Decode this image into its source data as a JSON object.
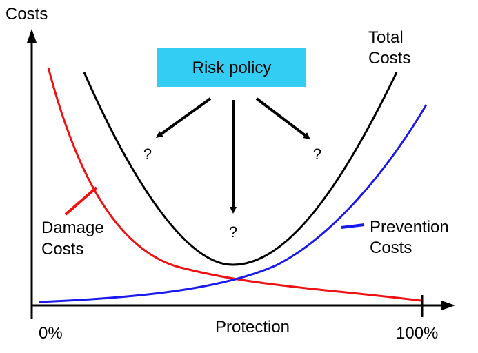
{
  "axes": {
    "y_label": "Costs",
    "x_label": "Protection",
    "x_min_label": "0%",
    "x_max_label": "100%"
  },
  "policy_box": {
    "label": "Risk policy",
    "color": "#33ccf2"
  },
  "question_marks": [
    "?",
    "?",
    "?"
  ],
  "curves": {
    "total": {
      "label_line1": "Total",
      "label_line2": "Costs",
      "color": "#000000"
    },
    "damage": {
      "label_line1": "Damage",
      "label_line2": "Costs",
      "color": "#ee1111"
    },
    "prevention": {
      "label_line1": "Prevention",
      "label_line2": "Costs",
      "color": "#1a1aee"
    }
  }
}
